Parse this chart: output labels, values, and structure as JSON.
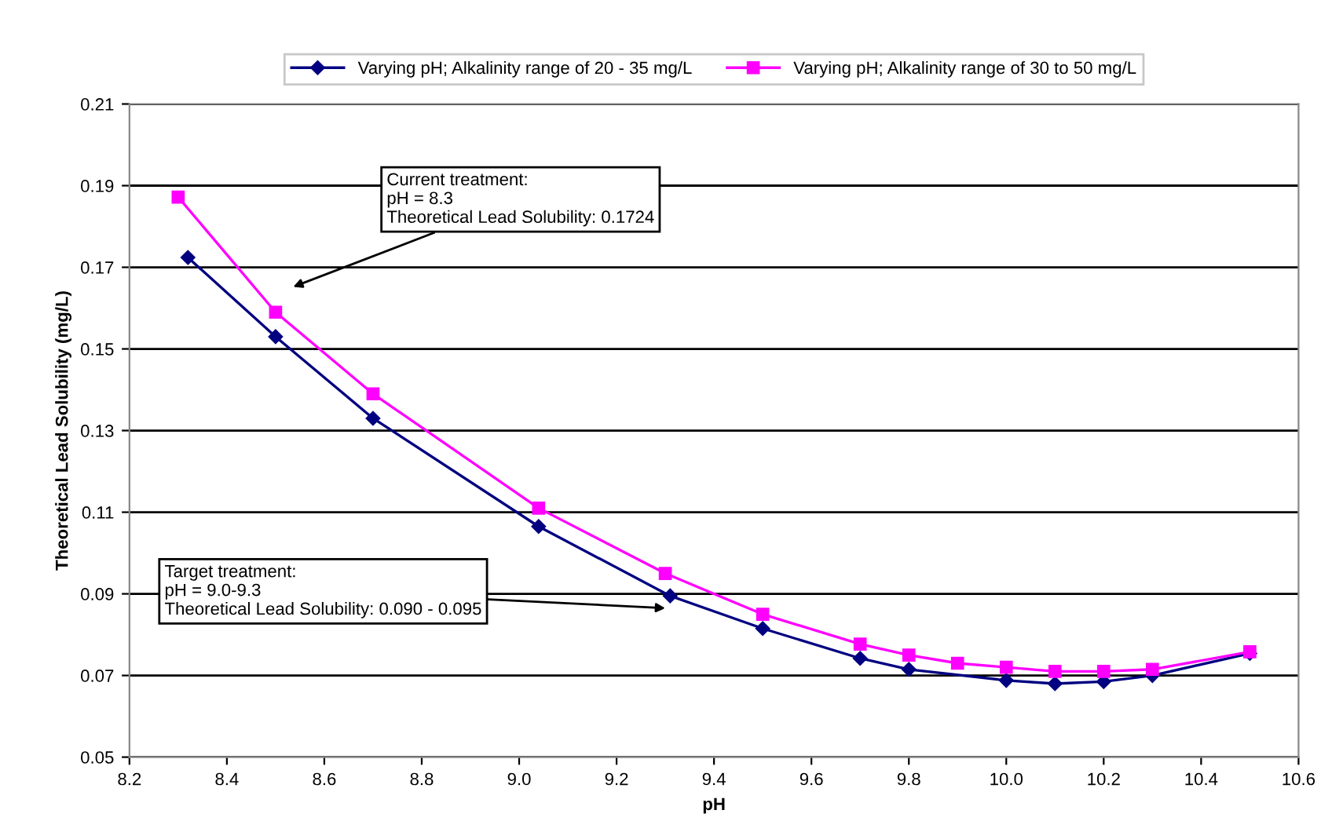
{
  "chart_data": {
    "type": "line",
    "xlabel": "pH",
    "ylabel": "Theoretical Lead Solubility (mg/L)",
    "xlim": [
      8.2,
      10.6
    ],
    "xticks": [
      {
        "value": 8.2,
        "label": "8.2"
      },
      {
        "value": 8.4,
        "label": "8.4"
      },
      {
        "value": 8.6,
        "label": "8.6"
      },
      {
        "value": 8.8,
        "label": "8.8"
      },
      {
        "value": 9.0,
        "label": "9.0"
      },
      {
        "value": 9.2,
        "label": "9.2"
      },
      {
        "value": 9.4,
        "label": "9.4"
      },
      {
        "value": 9.6,
        "label": "9.6"
      },
      {
        "value": 9.8,
        "label": "9.8"
      },
      {
        "value": 10.0,
        "label": "10.0"
      },
      {
        "value": 10.2,
        "label": "10.2"
      },
      {
        "value": 10.4,
        "label": "10.4"
      },
      {
        "value": 10.6,
        "label": "10.6"
      }
    ],
    "ylim": [
      0.05,
      0.21
    ],
    "yticks": [
      0.05,
      0.07,
      0.09,
      0.11,
      0.13,
      0.15,
      0.17,
      0.19,
      0.21
    ],
    "grid": "y",
    "legend": "top",
    "line_style": "solid",
    "series": [
      {
        "name": "Varying pH; Alkalinity range of 20 - 35 mg/L",
        "color": "#000080",
        "marker": "diamond",
        "x": [
          8.32,
          8.5,
          8.7,
          9.04,
          9.31,
          9.5,
          9.7,
          9.8,
          10.0,
          10.1,
          10.2,
          10.3,
          10.5
        ],
        "values": [
          0.1724,
          0.153,
          0.133,
          0.1065,
          0.0895,
          0.0815,
          0.0742,
          0.0715,
          0.0688,
          0.068,
          0.0685,
          0.07,
          0.0754
        ]
      },
      {
        "name": "Varying pH; Alkalinity range of 30 to 50 mg/L",
        "color": "#ff00ff",
        "marker": "square",
        "x": [
          8.3,
          8.5,
          8.7,
          9.04,
          9.3,
          9.5,
          9.7,
          9.8,
          9.9,
          10.0,
          10.1,
          10.2,
          10.3,
          10.5
        ],
        "values": [
          0.1872,
          0.159,
          0.139,
          0.111,
          0.095,
          0.085,
          0.0777,
          0.075,
          0.073,
          0.072,
          0.071,
          0.071,
          0.0715,
          0.0758
        ]
      }
    ],
    "annotations": [
      "Current treatment:\npH = 8.3\nTheoretical Lead Solubility: 0.1724",
      {
        "text": "Target treatment:\npH = 9.0-9.3\nTheoretical Lead Solubility: 0.090 - 0.095",
        "x": 9.3,
        "y": 0.0865
      }
    ]
  }
}
